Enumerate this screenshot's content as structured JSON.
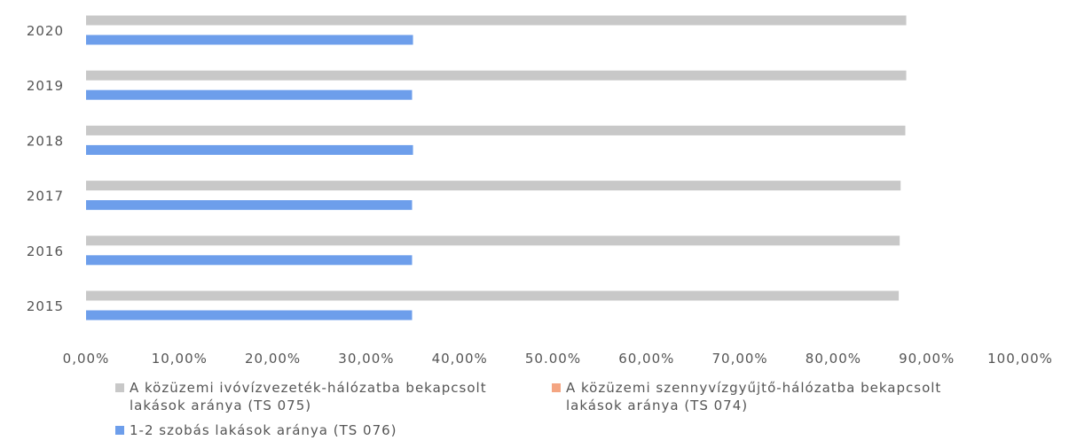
{
  "chart_data": {
    "type": "barh",
    "categories": [
      "2015",
      "2016",
      "2017",
      "2018",
      "2019",
      "2020"
    ],
    "series": [
      {
        "name": "A közüzemi ivóvízvezeték-hálózatba bekapcsolt lakások aránya (TS 075)",
        "color": "#c8c8c8",
        "values": [
          87.0,
          87.1,
          87.2,
          87.7,
          87.8,
          87.8
        ]
      },
      {
        "name": "A közüzemi szennyvízgyűjtő-hálózatba bekapcsolt lakások aránya (TS 074)",
        "color": "#f4a582",
        "values": [
          null,
          null,
          null,
          null,
          null,
          null
        ]
      },
      {
        "name": "1-2 szobás lakások aránya (TS 076)",
        "color": "#6d9eeb",
        "values": [
          34.9,
          34.9,
          34.9,
          35.0,
          34.9,
          35.0
        ]
      }
    ],
    "xlim": [
      0,
      100
    ],
    "xticks": [
      {
        "value": 0,
        "label": "0,00%"
      },
      {
        "value": 10,
        "label": "10,00%"
      },
      {
        "value": 20,
        "label": "20,00%"
      },
      {
        "value": 30,
        "label": "30,00%"
      },
      {
        "value": 40,
        "label": "40,00%"
      },
      {
        "value": 50,
        "label": "50.00%"
      },
      {
        "value": 60,
        "label": "60,00%"
      },
      {
        "value": 70,
        "label": "70,00%"
      },
      {
        "value": 80,
        "label": "80,00%"
      },
      {
        "value": 90,
        "label": "90,00%"
      },
      {
        "value": 100,
        "label": "100,00%"
      }
    ],
    "legend": "bottom"
  }
}
